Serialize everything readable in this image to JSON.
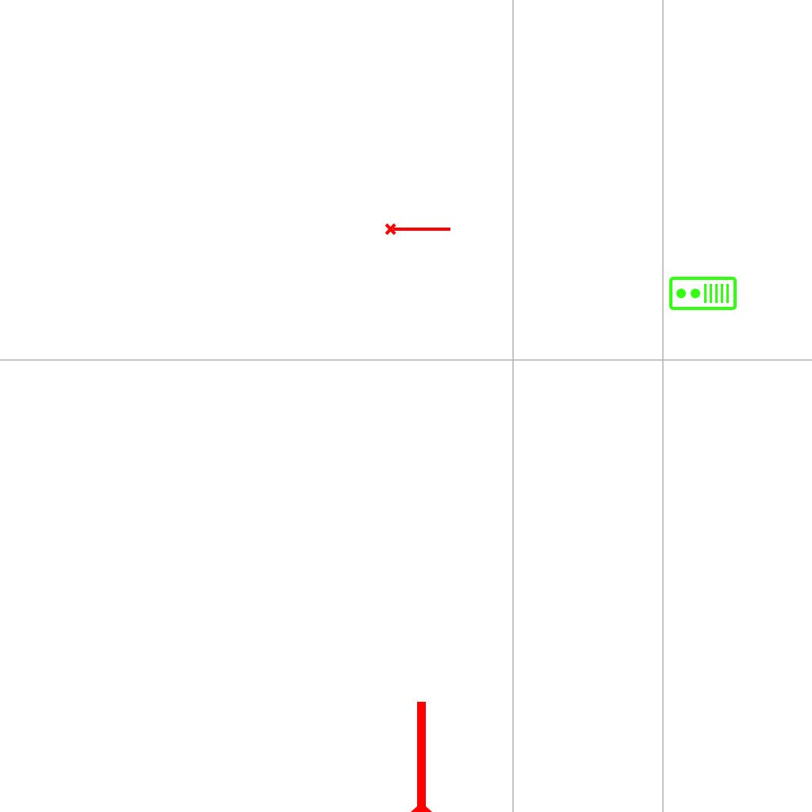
{
  "canvas": {
    "background": "#ffffff",
    "grid_line_color": "#b4b4b4",
    "grid_lines": [
      {
        "name": "grid-line-vertical-left"
      },
      {
        "name": "grid-line-vertical-right"
      },
      {
        "name": "grid-line-horizontal"
      }
    ]
  },
  "symbols": [
    {
      "name": "red-cross-line-symbol",
      "icon": "cross-with-line-icon",
      "color": "#ff0000"
    },
    {
      "name": "green-signal-device-symbol",
      "icon": "signal-box-icon",
      "color": "#33ff11"
    },
    {
      "name": "red-vertical-pole-symbol",
      "icon": "pole-with-diamond-base-icon",
      "color": "#ff0000"
    }
  ]
}
